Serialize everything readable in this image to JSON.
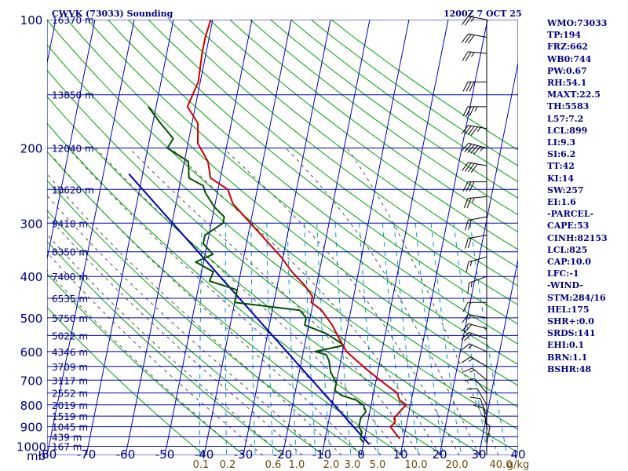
{
  "header": {
    "station": "CWVK (73033) Sounding",
    "datetime": "1200Z  7 OCT 25"
  },
  "colors": {
    "grid": "#0000b4",
    "temperature": "#c80000",
    "dewpoint": "#005000",
    "parcel": "#0000b4",
    "dry_adiabat": "#00a000",
    "moist_adiabat": "#505050",
    "mixing_ratio": "#0096c8",
    "text": "#000080",
    "mixing_label": "#6b4b0a"
  },
  "indices": [
    "WMO:73033",
    "TP:194",
    "FRZ:662",
    "WB0:744",
    "PW:0.67",
    "RH:54.1",
    "MAXT:22.5",
    "TH:5583",
    "L57:7.2",
    "LCL:899",
    "LI:9.3",
    "SI:6.2",
    "TT:42",
    "KI:14",
    "SW:257",
    "EI:1.6",
    "-PARCEL-",
    "CAPE:53",
    "CINH:82153",
    "LCL:825",
    "CAP:10.0",
    "LFC:-1",
    "-WIND-",
    "STM:284/16",
    "HEL:175",
    "SHR+:0.0",
    "SRDS:141",
    "EHI:0.1",
    "BRN:1.1",
    "BSHR:48"
  ],
  "chart_data": {
    "type": "skew-t",
    "title": "CWVK (73033) Sounding",
    "pressure_axis": {
      "unit_label": "mb",
      "ticks": [
        100,
        200,
        300,
        400,
        500,
        600,
        700,
        800,
        900,
        1000
      ],
      "range": [
        100,
        1050
      ]
    },
    "temperature_axis": {
      "ticks": [
        -80,
        -70,
        -60,
        -50,
        -40,
        -30,
        -20,
        -10,
        0,
        10,
        20,
        30,
        40
      ],
      "range": [
        -80,
        40
      ]
    },
    "height_labels": [
      {
        "p": 100,
        "label": "16370 m"
      },
      {
        "p": 150,
        "label": "13850 m"
      },
      {
        "p": 200,
        "label": "12040 m"
      },
      {
        "p": 250,
        "label": "10620 m"
      },
      {
        "p": 300,
        "label": "9410 m"
      },
      {
        "p": 350,
        "label": "8350 m"
      },
      {
        "p": 400,
        "label": "7400 m"
      },
      {
        "p": 450,
        "label": "6535 m"
      },
      {
        "p": 500,
        "label": "5750 m"
      },
      {
        "p": 550,
        "label": "5022 m"
      },
      {
        "p": 600,
        "label": "4346 m"
      },
      {
        "p": 650,
        "label": "3709 m"
      },
      {
        "p": 700,
        "label": "3117 m"
      },
      {
        "p": 750,
        "label": "2552 m"
      },
      {
        "p": 800,
        "label": "2019 m"
      },
      {
        "p": 850,
        "label": "1519 m"
      },
      {
        "p": 900,
        "label": "1045 m"
      },
      {
        "p": 950,
        "label": "439 m"
      },
      {
        "p": 1000,
        "label": "167 m"
      }
    ],
    "mixing_ratio_labels": [
      {
        "w": 0.1,
        "label": "0.1"
      },
      {
        "w": 0.2,
        "label": "0.2"
      },
      {
        "w": 0.6,
        "label": "0.6"
      },
      {
        "w": 1.0,
        "label": "1.0"
      },
      {
        "w": 2.0,
        "label": "2.0"
      },
      {
        "w": 3.0,
        "label": "3.0"
      },
      {
        "w": 5.0,
        "label": "5.0"
      },
      {
        "w": 10.0,
        "label": "10.0"
      },
      {
        "w": 20.0,
        "label": "20.0"
      },
      {
        "w": 40.0,
        "label": "40.0"
      },
      {
        "w": null,
        "label": "g/kg"
      }
    ],
    "temperature": [
      [
        100,
        -60.5
      ],
      [
        110,
        -61
      ],
      [
        120,
        -61
      ],
      [
        140,
        -60.5
      ],
      [
        160,
        -62
      ],
      [
        175,
        -58.5
      ],
      [
        195,
        -57.5
      ],
      [
        215,
        -54
      ],
      [
        235,
        -52.5
      ],
      [
        250,
        -47.5
      ],
      [
        270,
        -45.5
      ],
      [
        300,
        -40
      ],
      [
        330,
        -35
      ],
      [
        360,
        -30.5
      ],
      [
        390,
        -27
      ],
      [
        420,
        -23
      ],
      [
        445,
        -20.5
      ],
      [
        460,
        -20.5
      ],
      [
        480,
        -17.5
      ],
      [
        520,
        -14
      ],
      [
        560,
        -11.5
      ],
      [
        600,
        -9
      ],
      [
        650,
        -4
      ],
      [
        700,
        1
      ],
      [
        750,
        6
      ],
      [
        780,
        7
      ],
      [
        800,
        9
      ],
      [
        820,
        8
      ],
      [
        860,
        6.5
      ],
      [
        880,
        7
      ],
      [
        900,
        6
      ],
      [
        940,
        8
      ],
      [
        960,
        9
      ]
    ],
    "dewpoint": [
      [
        160,
        -72
      ],
      [
        175,
        -68
      ],
      [
        190,
        -64
      ],
      [
        200,
        -65
      ],
      [
        215,
        -59
      ],
      [
        235,
        -58
      ],
      [
        245,
        -54
      ],
      [
        255,
        -53
      ],
      [
        275,
        -50
      ],
      [
        290,
        -47
      ],
      [
        300,
        -47
      ],
      [
        320,
        -51
      ],
      [
        335,
        -51
      ],
      [
        355,
        -48
      ],
      [
        370,
        -52
      ],
      [
        390,
        -47
      ],
      [
        410,
        -47.5
      ],
      [
        430,
        -40
      ],
      [
        460,
        -40
      ],
      [
        480,
        -23
      ],
      [
        500,
        -21
      ],
      [
        520,
        -21
      ],
      [
        545,
        -15
      ],
      [
        565,
        -12
      ],
      [
        580,
        -10
      ],
      [
        600,
        -17
      ],
      [
        610,
        -14
      ],
      [
        630,
        -13
      ],
      [
        670,
        -12
      ],
      [
        710,
        -10
      ],
      [
        740,
        -10
      ],
      [
        760,
        -8
      ],
      [
        780,
        -4
      ],
      [
        800,
        -2
      ],
      [
        830,
        -1
      ],
      [
        860,
        -2
      ],
      [
        900,
        -2
      ],
      [
        925,
        -1
      ],
      [
        960,
        -1
      ],
      [
        980,
        0
      ]
    ],
    "parcel_path": [
      [
        230,
        -73.5
      ],
      [
        990,
        1.5
      ]
    ],
    "wind_barbs": [
      {
        "p": 100,
        "dir": 260,
        "kt": 25
      },
      {
        "p": 110,
        "dir": 260,
        "kt": 30
      },
      {
        "p": 120,
        "dir": 265,
        "kt": 25
      },
      {
        "p": 140,
        "dir": 270,
        "kt": 30
      },
      {
        "p": 160,
        "dir": 270,
        "kt": 35
      },
      {
        "p": 180,
        "dir": 260,
        "kt": 45
      },
      {
        "p": 200,
        "dir": 255,
        "kt": 55
      },
      {
        "p": 220,
        "dir": 260,
        "kt": 40
      },
      {
        "p": 240,
        "dir": 270,
        "kt": 30
      },
      {
        "p": 260,
        "dir": 275,
        "kt": 25
      },
      {
        "p": 290,
        "dir": 280,
        "kt": 20
      },
      {
        "p": 320,
        "dir": 280,
        "kt": 20
      },
      {
        "p": 360,
        "dir": 285,
        "kt": 15
      },
      {
        "p": 400,
        "dir": 290,
        "kt": 15
      },
      {
        "p": 460,
        "dir": 270,
        "kt": 15
      },
      {
        "p": 500,
        "dir": 260,
        "kt": 15
      },
      {
        "p": 530,
        "dir": 255,
        "kt": 20
      },
      {
        "p": 560,
        "dir": 250,
        "kt": 20
      },
      {
        "p": 600,
        "dir": 245,
        "kt": 15
      },
      {
        "p": 650,
        "dir": 240,
        "kt": 15
      },
      {
        "p": 700,
        "dir": 230,
        "kt": 15
      },
      {
        "p": 750,
        "dir": 220,
        "kt": 10
      },
      {
        "p": 800,
        "dir": 210,
        "kt": 10
      },
      {
        "p": 850,
        "dir": 200,
        "kt": 10
      },
      {
        "p": 900,
        "dir": 190,
        "kt": 10
      },
      {
        "p": 950,
        "dir": 180,
        "kt": 5
      },
      {
        "p": 990,
        "dir": 170,
        "kt": 5
      }
    ]
  }
}
